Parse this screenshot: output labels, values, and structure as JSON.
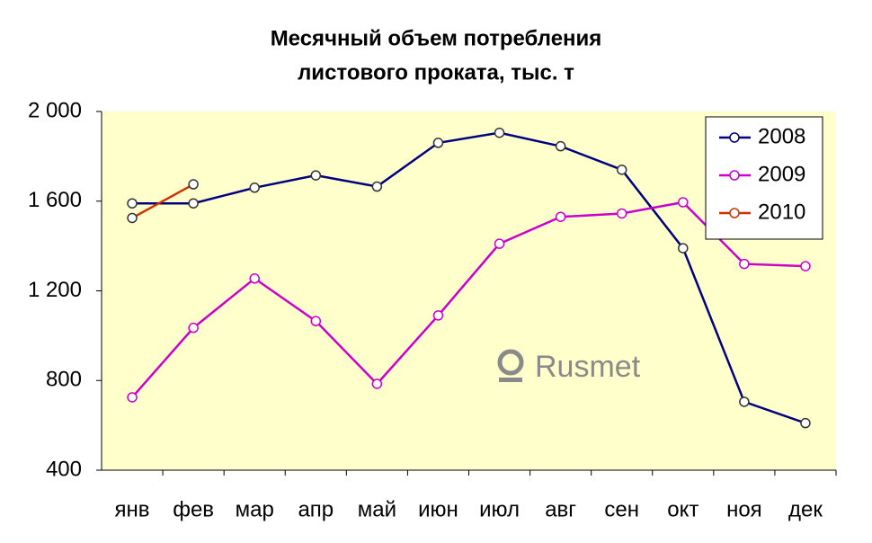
{
  "chart_data": {
    "type": "line",
    "title": [
      "Месячный объем потребления",
      "листового проката, тыс. т"
    ],
    "watermark": "Rusmet",
    "categories": [
      "янв",
      "фев",
      "мар",
      "апр",
      "май",
      "июн",
      "июл",
      "авг",
      "сен",
      "окт",
      "ноя",
      "дек"
    ],
    "series": [
      {
        "name": "2008",
        "color": "#000080",
        "values": [
          1590,
          1590,
          1660,
          1715,
          1665,
          1860,
          1905,
          1845,
          1740,
          1390,
          705,
          610
        ]
      },
      {
        "name": "2009",
        "color": "#cc00cc",
        "values": [
          725,
          1035,
          1255,
          1065,
          785,
          1090,
          1410,
          1530,
          1545,
          1595,
          1320,
          1310
        ]
      },
      {
        "name": "2010",
        "color": "#cc3300",
        "values": [
          1525,
          1675,
          null,
          null,
          null,
          null,
          null,
          null,
          null,
          null,
          null,
          null
        ]
      }
    ],
    "ylim": [
      400,
      2000
    ],
    "yticks": [
      {
        "value": 2000,
        "label": "2 000"
      },
      {
        "value": 1600,
        "label": "1 600"
      },
      {
        "value": 1200,
        "label": "1 200"
      },
      800,
      400
    ],
    "grid": false,
    "legend": "top-right",
    "background": "#ffffcc"
  }
}
